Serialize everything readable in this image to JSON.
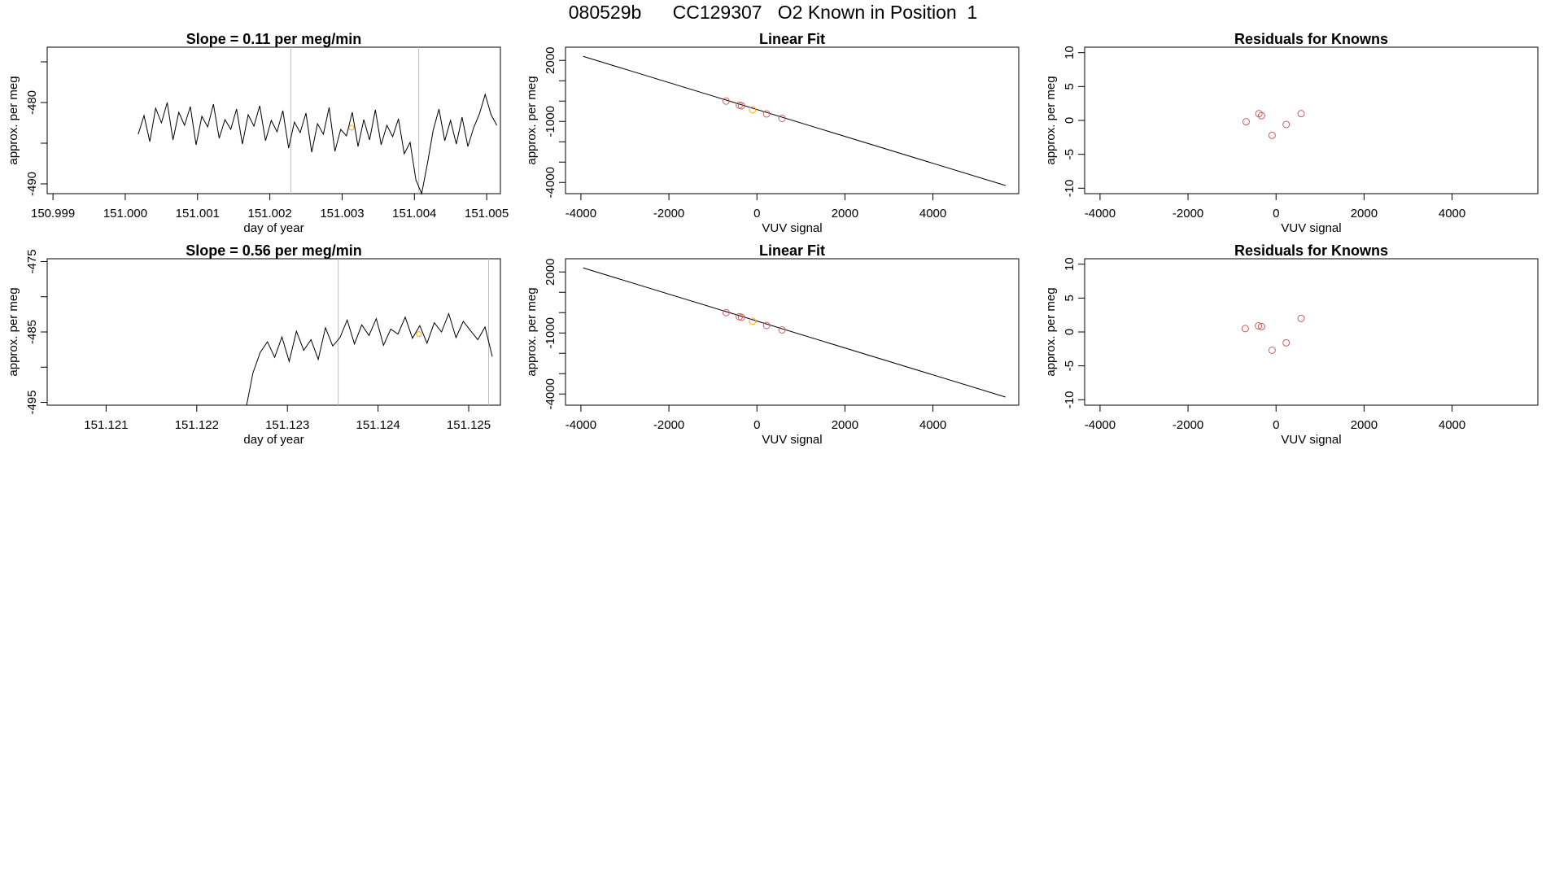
{
  "page": {
    "title": "080529b      CC129307   O2 Known in Position  1"
  },
  "chart_data": [
    {
      "id": "p1",
      "type": "line",
      "title": "Slope =  0.11  per meg/min",
      "xlabel": "day of year",
      "ylabel": "approx. per meg",
      "xlim": [
        150.99892,
        151.00519
      ],
      "ylim": [
        -491.2,
        -473.2
      ],
      "xticks": [
        {
          "v": 150.999,
          "label": "150.999"
        },
        {
          "v": 151.0,
          "label": "151.000"
        },
        {
          "v": 151.001,
          "label": "151.001"
        },
        {
          "v": 151.002,
          "label": "151.002"
        },
        {
          "v": 151.003,
          "label": "151.003"
        },
        {
          "v": 151.004,
          "label": "151.004"
        },
        {
          "v": 151.005,
          "label": "151.005"
        }
      ],
      "yticks": [
        {
          "v": -490,
          "label": "-490"
        },
        {
          "v": -485,
          "label": ""
        },
        {
          "v": -480,
          "label": "-480"
        },
        {
          "v": -475,
          "label": ""
        }
      ],
      "vlines": [
        151.00229,
        151.00406
      ],
      "marker_color": "#FFA500",
      "highlight": {
        "x": 151.00313,
        "y": -483.1
      },
      "series": [
        {
          "color": "#000000",
          "x": [
            151.00018,
            151.00026,
            151.00034,
            151.00042,
            151.0005,
            151.00058,
            151.00066,
            151.00074,
            151.00082,
            151.0009,
            151.00098,
            151.00106,
            151.00114,
            151.00122,
            151.0013,
            151.00138,
            151.00146,
            151.00154,
            151.00162,
            151.0017,
            151.00178,
            151.00186,
            151.00194,
            151.00202,
            151.0021,
            151.00218,
            151.00226,
            151.00234,
            151.00242,
            151.0025,
            151.00258,
            151.00266,
            151.00274,
            151.00282,
            151.0029,
            151.00298,
            151.00306,
            151.00314,
            151.00322,
            151.0033,
            151.00338,
            151.00346,
            151.00354,
            151.00362,
            151.0037,
            151.00378,
            151.00386,
            151.00394,
            151.00402,
            151.0041,
            151.00418,
            151.00426,
            151.00434,
            151.00442,
            151.0045,
            151.00458,
            151.00466,
            151.00474,
            151.00482,
            151.0049,
            151.00498,
            151.00506,
            151.00514
          ],
          "y": [
            -483.9,
            -481.6,
            -484.8,
            -480.7,
            -482.5,
            -480.0,
            -484.6,
            -481.2,
            -482.8,
            -480.5,
            -485.2,
            -481.7,
            -483.0,
            -480.2,
            -484.4,
            -482.1,
            -483.3,
            -480.8,
            -485.1,
            -481.5,
            -482.9,
            -480.4,
            -484.7,
            -482.2,
            -483.6,
            -481.0,
            -485.6,
            -482.4,
            -483.7,
            -481.3,
            -486.1,
            -482.6,
            -483.9,
            -480.6,
            -486.0,
            -483.3,
            -484.1,
            -481.2,
            -485.4,
            -482.1,
            -484.6,
            -480.9,
            -485.2,
            -482.8,
            -484.2,
            -482.0,
            -486.3,
            -484.9,
            -489.5,
            -491.2,
            -487.5,
            -483.4,
            -480.8,
            -484.7,
            -482.2,
            -485.1,
            -481.8,
            -485.4,
            -483.1,
            -481.4,
            -479.0,
            -481.5,
            -482.8
          ]
        }
      ]
    },
    {
      "id": "p2",
      "type": "line",
      "title": "Linear Fit",
      "xlabel": "VUV signal",
      "ylabel": "approx. per meg",
      "xlim": [
        -4350,
        5950
      ],
      "ylim": [
        -4550,
        2650
      ],
      "xticks": [
        {
          "v": -4000,
          "label": "-4000"
        },
        {
          "v": -2000,
          "label": "-2000"
        },
        {
          "v": 0,
          "label": "0"
        },
        {
          "v": 2000,
          "label": "2000"
        },
        {
          "v": 4000,
          "label": "4000"
        }
      ],
      "yticks": [
        {
          "v": -4000,
          "label": "-4000"
        },
        {
          "v": -3000,
          "label": ""
        },
        {
          "v": -2000,
          "label": ""
        },
        {
          "v": -1000,
          "label": "-1000"
        },
        {
          "v": 0,
          "label": ""
        },
        {
          "v": 1000,
          "label": ""
        },
        {
          "v": 2000,
          "label": "2000"
        }
      ],
      "fit_line": {
        "x": [
          -3950,
          5650
        ],
        "y": [
          2200,
          -4150
        ]
      },
      "known_points": {
        "color": "#CD5C5C",
        "x": [
          -700,
          -400,
          -350,
          220,
          570
        ],
        "y": [
          0,
          -200,
          -230,
          -630,
          -850
        ]
      },
      "highlight_points": {
        "color": "#FFA500",
        "x": [
          -100
        ],
        "y": [
          -425
        ]
      }
    },
    {
      "id": "p3",
      "type": "scatter",
      "title": "Residuals for Knowns",
      "xlabel": "VUV signal",
      "ylabel": "approx. per meg",
      "xlim": [
        -4350,
        5950
      ],
      "ylim": [
        -10.8,
        10.8
      ],
      "xticks": [
        {
          "v": -4000,
          "label": "-4000"
        },
        {
          "v": -2000,
          "label": "-2000"
        },
        {
          "v": 0,
          "label": "0"
        },
        {
          "v": 2000,
          "label": "2000"
        },
        {
          "v": 4000,
          "label": "4000"
        }
      ],
      "yticks": [
        {
          "v": -10,
          "label": "-10"
        },
        {
          "v": -5,
          "label": "-5"
        },
        {
          "v": 0,
          "label": "0"
        },
        {
          "v": 5,
          "label": "5"
        },
        {
          "v": 10,
          "label": "10"
        }
      ],
      "points": {
        "color": "#CD5C5C",
        "x": [
          -680,
          -390,
          -330,
          -90,
          230,
          570
        ],
        "y": [
          -0.2,
          1.0,
          0.7,
          -2.2,
          -0.6,
          1.0
        ]
      }
    },
    {
      "id": "p4",
      "type": "line",
      "title": "Slope =  0.56  per meg/min",
      "xlabel": "day of year",
      "ylabel": "approx. per meg",
      "xlim": [
        151.12035,
        151.12535
      ],
      "ylim": [
        -495.4,
        -474.6
      ],
      "xticks": [
        {
          "v": 151.121,
          "label": "151.121"
        },
        {
          "v": 151.122,
          "label": "151.122"
        },
        {
          "v": 151.123,
          "label": "151.123"
        },
        {
          "v": 151.124,
          "label": "151.124"
        },
        {
          "v": 151.125,
          "label": "151.125"
        }
      ],
      "yticks": [
        {
          "v": -495,
          "label": "-495"
        },
        {
          "v": -490,
          "label": ""
        },
        {
          "v": -485,
          "label": "-485"
        },
        {
          "v": -480,
          "label": ""
        },
        {
          "v": -475,
          "label": "-475"
        }
      ],
      "vlines": [
        151.12356,
        151.12522
      ],
      "marker_color": "#FFA500",
      "highlight": {
        "x": 151.12445,
        "y": -485.3
      },
      "series": [
        {
          "color": "#000000",
          "x": [
            151.12035,
            151.12255,
            151.12262,
            151.1227,
            151.12278,
            151.12286,
            151.12294,
            151.12302,
            151.1231,
            151.12318,
            151.12326,
            151.12334,
            151.12342,
            151.1235,
            151.12358,
            151.12366,
            151.12374,
            151.12382,
            151.1239,
            151.12398,
            151.12406,
            151.12414,
            151.12422,
            151.1243,
            151.12438,
            151.12446,
            151.12454,
            151.12462,
            151.1247,
            151.12478,
            151.12486,
            151.12494,
            151.12502,
            151.1251,
            151.12518,
            151.12526
          ],
          "y": [
            -495.4,
            -495.4,
            -490.8,
            -487.9,
            -486.4,
            -488.6,
            -485.7,
            -489.2,
            -484.9,
            -487.6,
            -486.1,
            -488.9,
            -484.4,
            -487.0,
            -485.8,
            -483.3,
            -486.7,
            -484.0,
            -485.5,
            -483.1,
            -486.9,
            -484.6,
            -485.3,
            -482.9,
            -485.9,
            -484.1,
            -486.6,
            -483.7,
            -485.0,
            -482.4,
            -485.8,
            -483.5,
            -484.8,
            -486.1,
            -484.3,
            -488.5
          ]
        }
      ]
    },
    {
      "id": "p5",
      "type": "line",
      "title": "Linear Fit",
      "xlabel": "VUV signal",
      "ylabel": "approx. per meg",
      "xlim": [
        -4350,
        5950
      ],
      "ylim": [
        -4550,
        2650
      ],
      "xticks": [
        {
          "v": -4000,
          "label": "-4000"
        },
        {
          "v": -2000,
          "label": "-2000"
        },
        {
          "v": 0,
          "label": "0"
        },
        {
          "v": 2000,
          "label": "2000"
        },
        {
          "v": 4000,
          "label": "4000"
        }
      ],
      "yticks": [
        {
          "v": -4000,
          "label": "-4000"
        },
        {
          "v": -3000,
          "label": ""
        },
        {
          "v": -2000,
          "label": ""
        },
        {
          "v": -1000,
          "label": "-1000"
        },
        {
          "v": 0,
          "label": ""
        },
        {
          "v": 1000,
          "label": ""
        },
        {
          "v": 2000,
          "label": "2000"
        }
      ],
      "fit_line": {
        "x": [
          -3950,
          5650
        ],
        "y": [
          2200,
          -4150
        ]
      },
      "known_points": {
        "color": "#CD5C5C",
        "x": [
          -700,
          -400,
          -350,
          220,
          570
        ],
        "y": [
          0,
          -200,
          -230,
          -630,
          -850
        ]
      },
      "highlight_points": {
        "color": "#FFA500",
        "x": [
          -100
        ],
        "y": [
          -425
        ]
      }
    },
    {
      "id": "p6",
      "type": "scatter",
      "title": "Residuals for Knowns",
      "xlabel": "VUV signal",
      "ylabel": "approx. per meg",
      "xlim": [
        -4350,
        5950
      ],
      "ylim": [
        -10.8,
        10.8
      ],
      "xticks": [
        {
          "v": -4000,
          "label": "-4000"
        },
        {
          "v": -2000,
          "label": "-2000"
        },
        {
          "v": 0,
          "label": "0"
        },
        {
          "v": 2000,
          "label": "2000"
        },
        {
          "v": 4000,
          "label": "4000"
        }
      ],
      "yticks": [
        {
          "v": -10,
          "label": "-10"
        },
        {
          "v": -5,
          "label": "-5"
        },
        {
          "v": 0,
          "label": "0"
        },
        {
          "v": 5,
          "label": "5"
        },
        {
          "v": 10,
          "label": "10"
        }
      ],
      "points": {
        "color": "#CD5C5C",
        "x": [
          -700,
          -400,
          -330,
          -90,
          230,
          570
        ],
        "y": [
          0.5,
          0.9,
          0.8,
          -2.7,
          -1.6,
          2.0
        ]
      }
    }
  ]
}
